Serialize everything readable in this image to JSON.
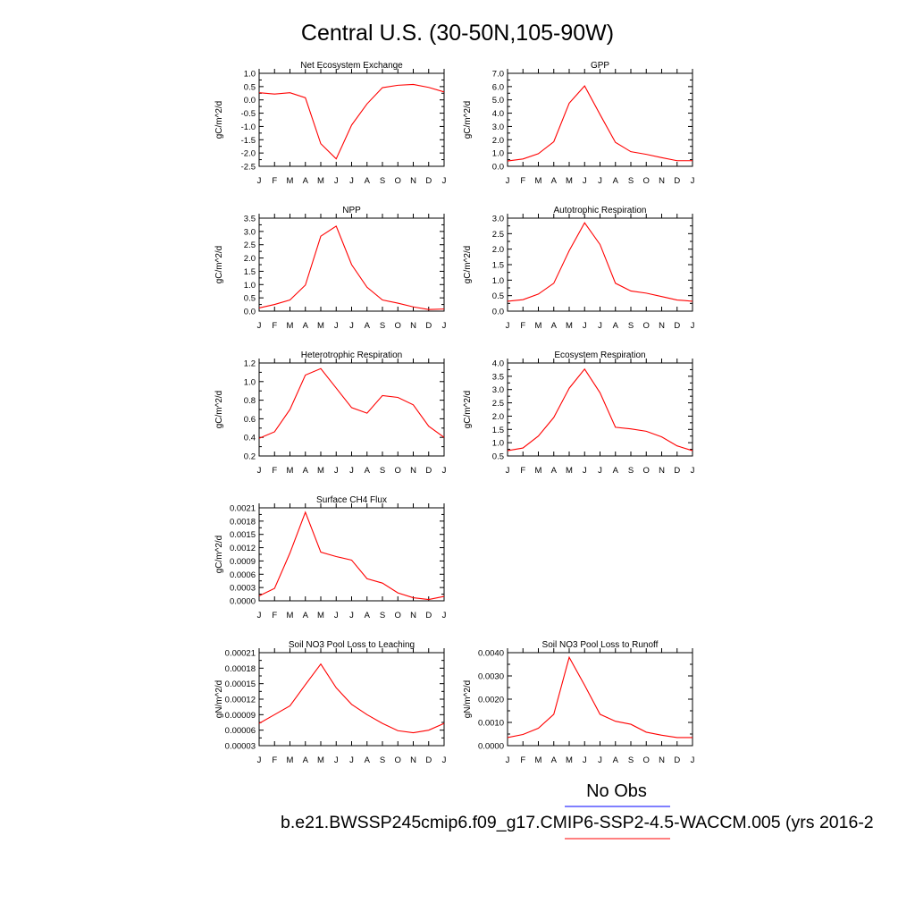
{
  "page_title": "Central U.S. (30-50N,105-90W)",
  "legend": {
    "obs_label": "No Obs",
    "obs_color": "#0000ff",
    "model_label": "b.e21.BWSSP245cmip6.f09_g17.CMIP6-SSP2-4.5-WACCM.005 (yrs 2016-2",
    "model_color": "#ff0000"
  },
  "chart_data": [
    {
      "type": "line",
      "title": "Net Ecosystem Exchange",
      "ylabel": "gC/m^2/d",
      "categories": [
        "J",
        "F",
        "M",
        "A",
        "M",
        "J",
        "J",
        "A",
        "S",
        "O",
        "N",
        "D",
        "J"
      ],
      "ylim": [
        -2.5,
        1.0
      ],
      "yticks": [
        "1.0",
        "0.5",
        "0.0",
        "-0.5",
        "-1.0",
        "-1.5",
        "-2.0",
        "-2.5"
      ],
      "series": [
        {
          "color": "#ff0000",
          "values": [
            0.27,
            0.22,
            0.27,
            0.08,
            -1.65,
            -2.22,
            -0.95,
            -0.15,
            0.46,
            0.55,
            0.58,
            0.47,
            0.3
          ]
        }
      ]
    },
    {
      "type": "line",
      "title": "GPP",
      "ylabel": "gC/m^2/d",
      "categories": [
        "J",
        "F",
        "M",
        "A",
        "M",
        "J",
        "J",
        "A",
        "S",
        "O",
        "N",
        "D",
        "J"
      ],
      "ylim": [
        0,
        7.0
      ],
      "yticks": [
        "7.0",
        "6.0",
        "5.0",
        "4.0",
        "3.0",
        "2.0",
        "1.0",
        "0.0"
      ],
      "series": [
        {
          "color": "#ff0000",
          "values": [
            0.4,
            0.55,
            0.95,
            1.85,
            4.75,
            6.05,
            3.9,
            1.8,
            1.1,
            0.9,
            0.65,
            0.42,
            0.42
          ]
        }
      ]
    },
    {
      "type": "line",
      "title": "NPP",
      "ylabel": "gC/m^2/d",
      "categories": [
        "J",
        "F",
        "M",
        "A",
        "M",
        "J",
        "J",
        "A",
        "S",
        "O",
        "N",
        "D",
        "J"
      ],
      "ylim": [
        0,
        3.5
      ],
      "yticks": [
        "3.5",
        "3.0",
        "2.5",
        "2.0",
        "1.5",
        "1.0",
        "0.5",
        "0.0"
      ],
      "series": [
        {
          "color": "#ff0000",
          "values": [
            0.12,
            0.25,
            0.42,
            0.98,
            2.82,
            3.2,
            1.75,
            0.9,
            0.42,
            0.3,
            0.16,
            0.06,
            0.08
          ]
        }
      ]
    },
    {
      "type": "line",
      "title": "Autotrophic Respiration",
      "ylabel": "gC/m^2/d",
      "categories": [
        "J",
        "F",
        "M",
        "A",
        "M",
        "J",
        "J",
        "A",
        "S",
        "O",
        "N",
        "D",
        "J"
      ],
      "ylim": [
        0,
        3.0
      ],
      "yticks": [
        "3.0",
        "2.5",
        "2.0",
        "1.5",
        "1.0",
        "0.5",
        "0.0"
      ],
      "series": [
        {
          "color": "#ff0000",
          "values": [
            0.32,
            0.37,
            0.55,
            0.9,
            1.95,
            2.85,
            2.15,
            0.9,
            0.65,
            0.58,
            0.47,
            0.36,
            0.32
          ]
        }
      ]
    },
    {
      "type": "line",
      "title": "Heterotrophic Respiration",
      "ylabel": "gC/m^2/d",
      "categories": [
        "J",
        "F",
        "M",
        "A",
        "M",
        "J",
        "J",
        "A",
        "S",
        "O",
        "N",
        "D",
        "J"
      ],
      "ylim": [
        0.2,
        1.2
      ],
      "yticks": [
        "1.2",
        "1.0",
        "0.8",
        "0.6",
        "0.4",
        "0.2"
      ],
      "series": [
        {
          "color": "#ff0000",
          "values": [
            0.39,
            0.46,
            0.7,
            1.07,
            1.14,
            0.93,
            0.72,
            0.66,
            0.85,
            0.83,
            0.75,
            0.52,
            0.4
          ]
        }
      ]
    },
    {
      "type": "line",
      "title": "Ecosystem Respiration",
      "ylabel": "gC/m^2/d",
      "categories": [
        "J",
        "F",
        "M",
        "A",
        "M",
        "J",
        "J",
        "A",
        "S",
        "O",
        "N",
        "D",
        "J"
      ],
      "ylim": [
        0.5,
        4.0
      ],
      "yticks": [
        "4.0",
        "3.5",
        "3.0",
        "2.5",
        "2.0",
        "1.5",
        "1.0",
        "0.5"
      ],
      "series": [
        {
          "color": "#ff0000",
          "values": [
            0.7,
            0.8,
            1.25,
            1.95,
            3.05,
            3.77,
            2.88,
            1.58,
            1.52,
            1.43,
            1.22,
            0.88,
            0.7
          ]
        }
      ]
    },
    {
      "type": "line",
      "title": "Surface CH4 Flux",
      "ylabel": "gC/m^2/d",
      "categories": [
        "J",
        "F",
        "M",
        "A",
        "M",
        "J",
        "J",
        "A",
        "S",
        "O",
        "N",
        "D",
        "J"
      ],
      "ylim": [
        0,
        0.0021
      ],
      "yticks": [
        "0.0021",
        "0.0018",
        "0.0015",
        "0.0012",
        "0.0009",
        "0.0006",
        "0.0003",
        "0.0000"
      ],
      "series": [
        {
          "color": "#ff0000",
          "values": [
            0.00011,
            0.00028,
            0.00108,
            0.002,
            0.0011,
            0.001,
            0.00092,
            0.0005,
            0.0004,
            0.00018,
            7e-05,
            3e-05,
            0.0001
          ]
        }
      ]
    },
    {
      "type": "line",
      "title": "Soil NO3 Pool Loss to Leaching",
      "ylabel": "gN/m^2/d",
      "categories": [
        "J",
        "F",
        "M",
        "A",
        "M",
        "J",
        "J",
        "A",
        "S",
        "O",
        "N",
        "D",
        "J"
      ],
      "ylim": [
        3e-05,
        0.00021
      ],
      "yticks": [
        "0.00021",
        "0.00018",
        "0.00015",
        "0.00012",
        "0.00009",
        "0.00006",
        "0.00003"
      ],
      "series": [
        {
          "color": "#ff0000",
          "values": [
            7.3e-05,
            9e-05,
            0.000107,
            0.000148,
            0.000188,
            0.000142,
            0.00011,
            9e-05,
            7.3e-05,
            5.9e-05,
            5.5e-05,
            6e-05,
            7.3e-05
          ]
        }
      ]
    },
    {
      "type": "line",
      "title": "Soil NO3 Pool Loss to Runoff",
      "ylabel": "gN/m^2/d",
      "categories": [
        "J",
        "F",
        "M",
        "A",
        "M",
        "J",
        "J",
        "A",
        "S",
        "O",
        "N",
        "D",
        "J"
      ],
      "ylim": [
        0,
        0.004
      ],
      "yticks": [
        "0.0040",
        "0.0030",
        "0.0020",
        "0.0010",
        "0.0000"
      ],
      "series": [
        {
          "color": "#ff0000",
          "values": [
            0.00035,
            0.00048,
            0.00075,
            0.00135,
            0.0038,
            0.0026,
            0.00135,
            0.00105,
            0.00092,
            0.00058,
            0.00045,
            0.00035,
            0.00035
          ]
        }
      ]
    }
  ]
}
